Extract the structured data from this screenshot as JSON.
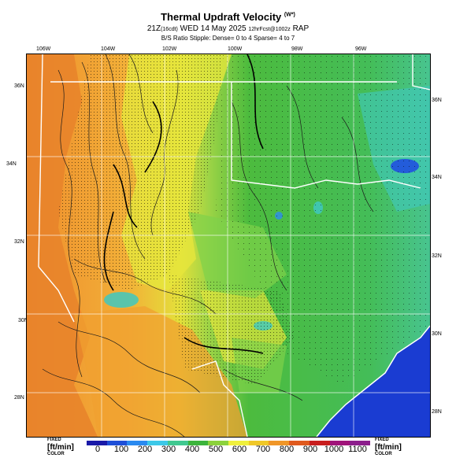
{
  "header": {
    "title": "Thermal Updraft Velocity",
    "title_unit": "(W*)",
    "subtitle_main": "21Z",
    "subtitle_local": "(16cdt)",
    "subtitle_date": "WED 14 May 2025",
    "subtitle_fcst": "12hrFcst@1002z",
    "subtitle_model": "RAP",
    "stipple_note": "B/S Ratio Stipple: Dense= 0 to 4 Sparse= 4 to 7"
  },
  "lon_labels": [
    "106W",
    "104W",
    "102W",
    "100W",
    "98W",
    "96W"
  ],
  "lat_labels_left": [
    "36N",
    "34N",
    "32N",
    "30N",
    "28N"
  ],
  "lat_labels_right": [
    "36N",
    "34N",
    "32N",
    "30N",
    "28N"
  ],
  "colorbar": {
    "left_label": "[ft/min]",
    "left_small_top": "FIXED",
    "left_small_bottom": "COLOR",
    "right_label": "[ft/min]",
    "right_small_top": "FIXED",
    "right_small_bottom": "COLOR",
    "ticks": [
      "0",
      "100",
      "200",
      "300",
      "400",
      "500",
      "600",
      "700",
      "800",
      "900",
      "1000",
      "1100"
    ],
    "colors": [
      "#1a1aa8",
      "#1e4fd8",
      "#2a8af0",
      "#3cc8e8",
      "#40c890",
      "#3cb43c",
      "#8cd23c",
      "#f0f03c",
      "#f0c828",
      "#f09628",
      "#e05a1e",
      "#c81e1e",
      "#a0147a",
      "#8c1e8c"
    ]
  },
  "map_colors": {
    "water": "#1a3cd2",
    "green": "#4cbb3e",
    "lightgreen": "#7fd24a",
    "yellow": "#e6e63c",
    "orange": "#f0a030",
    "deeporange": "#e8822a",
    "cyan": "#40c8c0",
    "blue": "#2050e0"
  }
}
